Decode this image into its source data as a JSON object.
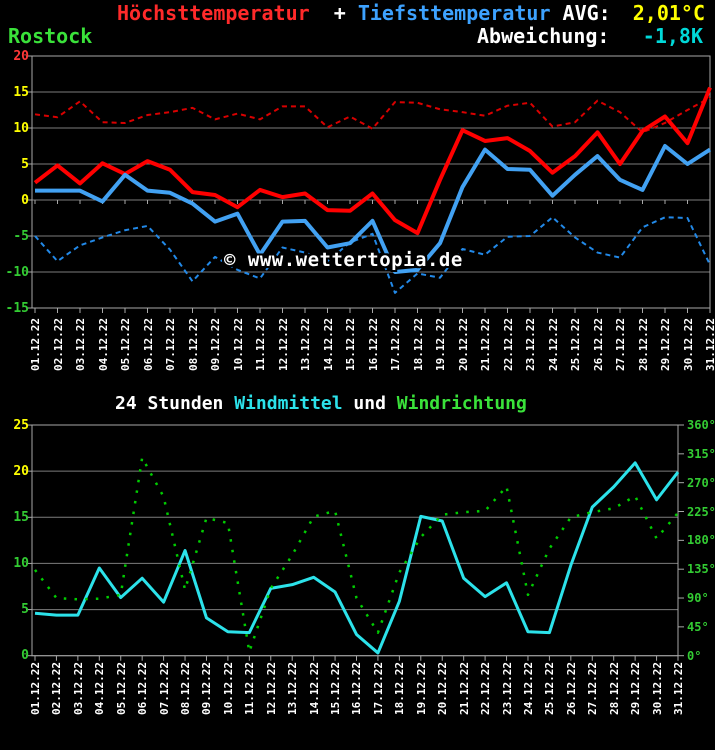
{
  "header": {
    "series1_label": "Höchsttemperatur",
    "plus": "  + ",
    "series2_label": "Tiefsttemperatur",
    "avg_label": " AVG:",
    "avg_value": "2,01°C",
    "station": "Rostock",
    "deviation_label": "Abweichung:",
    "deviation_value": "-1,8K"
  },
  "wind_title": {
    "part1": "24 Stunden ",
    "part2": "Windmittel",
    "part3": " und ",
    "part4": "Windrichtung"
  },
  "watermark": "© www.wettertopia.de",
  "dates": [
    "01.12.22",
    "02.12.22",
    "03.12.22",
    "04.12.22",
    "05.12.22",
    "06.12.22",
    "07.12.22",
    "08.12.22",
    "09.12.22",
    "10.12.22",
    "11.12.22",
    "12.12.22",
    "13.12.22",
    "14.12.22",
    "15.12.22",
    "16.12.22",
    "17.12.22",
    "18.12.22",
    "19.12.22",
    "20.12.22",
    "21.12.22",
    "22.12.22",
    "23.12.22",
    "24.12.22",
    "25.12.22",
    "26.12.22",
    "27.12.22",
    "28.12.22",
    "29.12.22",
    "30.12.22",
    "31.12.22"
  ],
  "colors": {
    "background": "#000000",
    "grid": "#7d7d7d",
    "frame": "#a8a8a8",
    "max_temp": "#ff0000",
    "min_temp": "#42a1f2",
    "avg_max_temp": "#d90000",
    "avg_min_temp": "#2289e8",
    "wind_speed": "#2ce2ea",
    "wind_direction": "#00cc00",
    "label_red": "#ff3838",
    "label_yellow": "#ffff00",
    "label_green": "#33cc33",
    "label_white": "#ffffff"
  },
  "chart_data": [
    {
      "id": "temperature",
      "type": "line",
      "title": "Höchsttemperatur + Tiefsttemperatur",
      "station": "Rostock",
      "avg": "2,01°C",
      "deviation": "-1,8K",
      "ylim": [
        -15,
        20
      ],
      "grid": true,
      "yticks": [
        {
          "value": 20,
          "color": "#ff3838"
        },
        {
          "value": 15,
          "color": "#ffff00"
        },
        {
          "value": 10,
          "color": "#ffff00"
        },
        {
          "value": 5,
          "color": "#ffff00"
        },
        {
          "value": 0,
          "color": "#ffff00"
        },
        {
          "value": -5,
          "color": "#33cc33"
        },
        {
          "value": -10,
          "color": "#33cc33"
        },
        {
          "value": -15,
          "color": "#33cc33"
        }
      ],
      "series": [
        {
          "name": "Höchsttemperatur Mittelwerte",
          "style": "dashed",
          "width": 2,
          "color": "#d90000",
          "values": [
            11.9,
            11.5,
            13.7,
            10.8,
            10.7,
            11.8,
            12.2,
            12.8,
            11.2,
            12.0,
            11.2,
            13.0,
            13.0,
            10.1,
            11.6,
            9.9,
            13.6,
            13.5,
            12.6,
            12.2,
            11.7,
            13.1,
            13.5,
            10.2,
            10.8,
            13.8,
            12.2,
            9.4,
            10.7,
            12.5,
            14.2
          ]
        },
        {
          "name": "Tiefsttemperatur Mittelwerte",
          "style": "dashed",
          "width": 2,
          "color": "#2289e8",
          "values": [
            -5.0,
            -8.5,
            -6.3,
            -5.2,
            -4.2,
            -3.6,
            -6.9,
            -11.3,
            -7.9,
            -9.7,
            -10.9,
            -6.6,
            -7.3,
            -8.5,
            -5.9,
            -4.7,
            -12.9,
            -10.2,
            -10.8,
            -6.8,
            -7.6,
            -5.1,
            -5.0,
            -2.4,
            -5.2,
            -7.3,
            -8.0,
            -3.8,
            -2.4,
            -2.5,
            -9.0
          ]
        },
        {
          "name": "Höchsttemperatur",
          "style": "solid",
          "width": 4,
          "color": "#ff0000",
          "values": [
            2.4,
            4.8,
            2.3,
            5.1,
            3.6,
            5.4,
            4.2,
            1.1,
            0.7,
            -1.0,
            1.4,
            0.4,
            0.9,
            -1.4,
            -1.5,
            0.9,
            -2.8,
            -4.6,
            2.8,
            9.7,
            8.2,
            8.6,
            6.8,
            3.8,
            6.1,
            9.4,
            5.0,
            9.6,
            11.6,
            7.9,
            15.6
          ]
        },
        {
          "name": "Tiefsttemperatur",
          "style": "solid",
          "width": 4,
          "color": "#42a1f2",
          "values": [
            1.3,
            1.3,
            1.3,
            -0.2,
            3.5,
            1.3,
            1.0,
            -0.5,
            -3.0,
            -1.9,
            -7.6,
            -3.0,
            -2.9,
            -6.6,
            -6.0,
            -2.9,
            -10.0,
            -9.7,
            -6.0,
            1.8,
            7.0,
            4.3,
            4.2,
            0.6,
            3.5,
            6.1,
            2.8,
            1.4,
            7.5,
            5.0,
            7.0
          ]
        }
      ]
    },
    {
      "id": "wind",
      "type": "line",
      "title": "24 Stunden Windmittel und Windrichtung",
      "ylim_left": [
        0,
        25
      ],
      "ylim_right": [
        0,
        360
      ],
      "grid": true,
      "yticks_left": [
        {
          "value": 25,
          "color": "#ffff00"
        },
        {
          "value": 20,
          "color": "#ffff00"
        },
        {
          "value": 15,
          "color": "#33cc33"
        },
        {
          "value": 10,
          "color": "#33cc33"
        },
        {
          "value": 5,
          "color": "#33cc33"
        },
        {
          "value": 0,
          "color": "#33cc33"
        }
      ],
      "yticks_right": [
        {
          "label": "360°"
        },
        {
          "label": "315°"
        },
        {
          "label": "270°"
        },
        {
          "label": "225°"
        },
        {
          "label": "180°"
        },
        {
          "label": "135°"
        },
        {
          "label": "90°"
        },
        {
          "label": "45°"
        },
        {
          "label": "0°"
        }
      ],
      "series": [
        {
          "name": "Windmittel",
          "axis": "left",
          "style": "solid",
          "width": 3,
          "color": "#2ce2ea",
          "values": [
            4.6,
            4.4,
            4.4,
            9.5,
            6.3,
            8.4,
            5.8,
            11.4,
            4.1,
            2.6,
            2.5,
            7.3,
            7.7,
            8.5,
            6.9,
            2.3,
            0.3,
            5.9,
            15.1,
            14.6,
            8.4,
            6.4,
            7.9,
            2.6,
            2.5,
            9.8,
            16.1,
            18.3,
            20.9,
            16.9,
            19.9
          ]
        },
        {
          "name": "Windrichtung",
          "axis": "right",
          "style": "dotted",
          "width": 2.5,
          "color": "#00cc00",
          "values": [
            134,
            90,
            88,
            89,
            95,
            309,
            248,
            103,
            215,
            207,
            6,
            105,
            157,
            217,
            226,
            90,
            36,
            130,
            185,
            220,
            224,
            226,
            264,
            95,
            167,
            216,
            224,
            230,
            249,
            183,
            223
          ]
        }
      ]
    }
  ]
}
